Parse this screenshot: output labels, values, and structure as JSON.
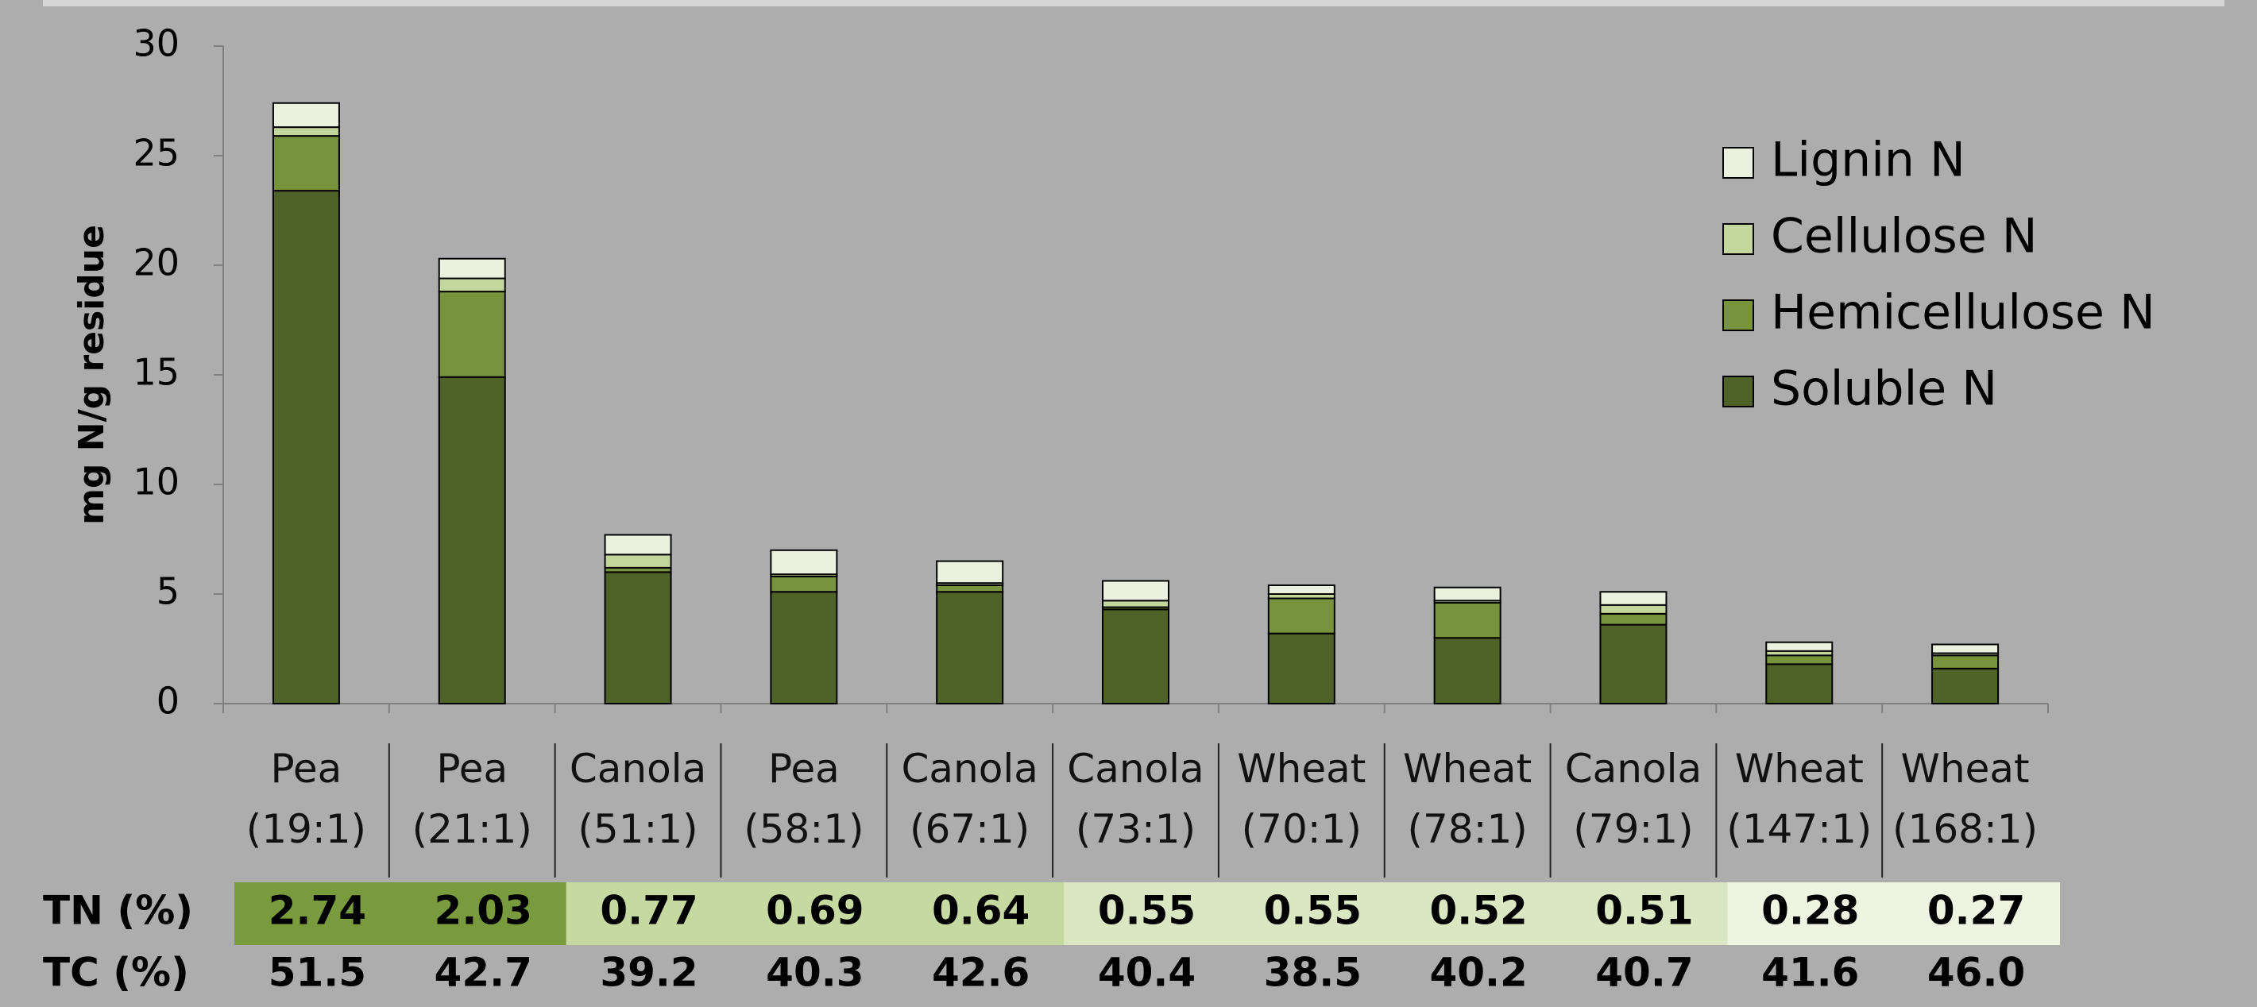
{
  "chart_data": {
    "type": "stacked_bar",
    "y_label": "mg N/g residue",
    "categories": [
      "Pea (19:1)",
      "Pea (21:1)",
      "Canola (51:1)",
      "Pea (58:1)",
      "Canola (67:1)",
      "Canola (73:1)",
      "Wheat (70:1)",
      "Wheat (78:1)",
      "Canola (79:1)",
      "Wheat (147:1)",
      "Wheat (168:1)"
    ],
    "series": [
      {
        "name": "Soluble N",
        "color": "#4f6228",
        "values": [
          23.4,
          14.9,
          6.0,
          5.1,
          5.1,
          4.3,
          3.2,
          3.0,
          3.6,
          1.8,
          1.6
        ]
      },
      {
        "name": "Hemicellulose N",
        "color": "#77933c",
        "values": [
          2.5,
          3.9,
          0.2,
          0.7,
          0.3,
          0.1,
          1.6,
          1.6,
          0.5,
          0.4,
          0.6
        ]
      },
      {
        "name": "Cellulose N",
        "color": "#c3d69b",
        "values": [
          0.4,
          0.6,
          0.6,
          0.1,
          0.1,
          0.3,
          0.2,
          0.1,
          0.4,
          0.2,
          0.1
        ]
      },
      {
        "name": "Lignin N",
        "color": "#ebf1de",
        "values": [
          1.1,
          0.9,
          0.9,
          1.1,
          1.0,
          0.9,
          0.4,
          0.6,
          0.6,
          0.4,
          0.4
        ]
      }
    ],
    "ylim": [
      0,
      30
    ],
    "yticks": [
      0,
      5,
      10,
      15,
      20,
      25,
      30
    ],
    "grid": false,
    "legend": "upper right",
    "table": {
      "rows": [
        {
          "label": "TN (%)",
          "values": [
            "2.74",
            "2.03",
            "0.77",
            "0.69",
            "0.64",
            "0.55",
            "0.55",
            "0.52",
            "0.51",
            "0.28",
            "0.27"
          ],
          "colors": [
            "#7a9a3e",
            "#7a9a3e",
            "#c6d9a0",
            "#c6d9a0",
            "#c6d9a0",
            "#dbe7c2",
            "#dbe7c2",
            "#dbe7c2",
            "#dbe7c2",
            "#eef3e2",
            "#eef3e2"
          ]
        },
        {
          "label": "TC (%)",
          "values": [
            "51.5",
            "42.7",
            "39.2",
            "40.3",
            "42.6",
            "40.4",
            "38.5",
            "40.2",
            "40.7",
            "41.6",
            "46.0"
          ]
        }
      ]
    }
  }
}
